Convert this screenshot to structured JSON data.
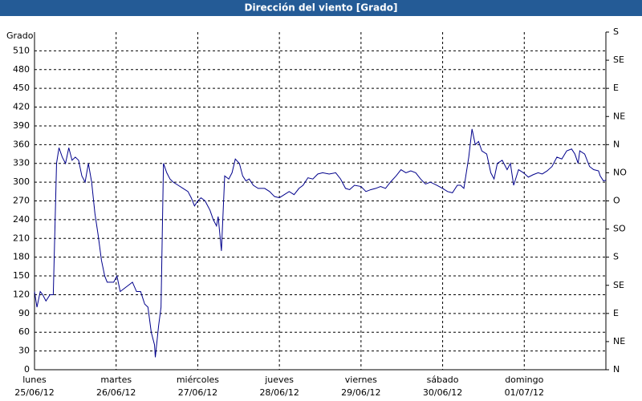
{
  "chart_data": {
    "type": "line",
    "title": "Dirección del viento [Grado]",
    "y_label": "Grado",
    "xlim": [
      0,
      7
    ],
    "xticks": [
      {
        "value": 0,
        "label": "lunes"
      },
      {
        "value": 1,
        "label": "martes"
      },
      {
        "value": 2,
        "label": "miércoles"
      },
      {
        "value": 3,
        "label": "jueves"
      },
      {
        "value": 4,
        "label": "viernes"
      },
      {
        "value": 5,
        "label": "sábado"
      },
      {
        "value": 6,
        "label": "domingo"
      }
    ],
    "xtick_dates": [
      "25/06/12",
      "26/06/12",
      "27/06/12",
      "28/06/12",
      "29/06/12",
      "30/06/12",
      "01/07/12"
    ],
    "ylim": [
      0,
      540
    ],
    "yticks": [
      0,
      30,
      60,
      90,
      120,
      150,
      180,
      210,
      240,
      270,
      300,
      330,
      360,
      390,
      420,
      450,
      480,
      510
    ],
    "y2lim": [
      0,
      540
    ],
    "y2ticks": [
      {
        "value": 0,
        "label": "N"
      },
      {
        "value": 45,
        "label": "NE"
      },
      {
        "value": 90,
        "label": "E"
      },
      {
        "value": 135,
        "label": "SE"
      },
      {
        "value": 180,
        "label": "S"
      },
      {
        "value": 225,
        "label": "SO"
      },
      {
        "value": 270,
        "label": "O"
      },
      {
        "value": 315,
        "label": "NO"
      },
      {
        "value": 360,
        "label": "N"
      },
      {
        "value": 405,
        "label": "NE"
      },
      {
        "value": 450,
        "label": "E"
      },
      {
        "value": 495,
        "label": "SE"
      },
      {
        "value": 540,
        "label": "S"
      }
    ],
    "grid": true,
    "series": [
      {
        "color": "#00008b",
        "x": [
          0,
          0.03,
          0.07,
          0.1,
          0.14,
          0.19,
          0.23,
          0.27,
          0.3,
          0.34,
          0.38,
          0.42,
          0.46,
          0.5,
          0.54,
          0.58,
          0.62,
          0.66,
          0.7,
          0.74,
          0.78,
          0.82,
          0.86,
          0.89,
          0.93,
          0.97,
          1.01,
          1.05,
          1.1,
          1.15,
          1.2,
          1.25,
          1.3,
          1.35,
          1.39,
          1.43,
          1.47,
          1.48,
          1.52,
          1.55,
          1.58,
          1.62,
          1.66,
          1.7,
          1.76,
          1.82,
          1.88,
          1.92,
          1.96,
          2.0,
          2.04,
          2.09,
          2.15,
          2.19,
          2.23,
          2.25,
          2.29,
          2.33,
          2.38,
          2.42,
          2.46,
          2.51,
          2.55,
          2.59,
          2.63,
          2.68,
          2.74,
          2.82,
          2.88,
          2.94,
          3.0,
          3.06,
          3.12,
          3.18,
          3.24,
          3.29,
          3.35,
          3.41,
          3.47,
          3.53,
          3.61,
          3.69,
          3.75,
          3.81,
          3.86,
          3.92,
          4.0,
          4.06,
          4.12,
          4.18,
          4.24,
          4.3,
          4.36,
          4.43,
          4.49,
          4.55,
          4.61,
          4.67,
          4.73,
          4.79,
          4.85,
          4.93,
          5.0,
          5.06,
          5.12,
          5.18,
          5.22,
          5.26,
          5.32,
          5.36,
          5.4,
          5.44,
          5.48,
          5.54,
          5.59,
          5.63,
          5.67,
          5.73,
          5.79,
          5.83,
          5.87,
          5.93,
          5.99,
          6.05,
          6.11,
          6.17,
          6.22,
          6.28,
          6.34,
          6.4,
          6.46,
          6.52,
          6.58,
          6.62,
          6.66,
          6.68,
          6.74,
          6.8,
          6.85,
          6.91,
          6.93,
          6.97,
          7.0
        ],
        "values": [
          125,
          100,
          125,
          120,
          110,
          120,
          120,
          330,
          355,
          340,
          330,
          355,
          335,
          340,
          335,
          310,
          300,
          330,
          300,
          250,
          215,
          175,
          150,
          140,
          140,
          140,
          150,
          125,
          130,
          135,
          140,
          125,
          125,
          105,
          100,
          60,
          40,
          20,
          70,
          100,
          330,
          315,
          305,
          300,
          295,
          290,
          285,
          275,
          262,
          270,
          275,
          270,
          255,
          240,
          230,
          245,
          190,
          310,
          305,
          315,
          337,
          330,
          310,
          302,
          305,
          295,
          290,
          290,
          285,
          277,
          275,
          280,
          285,
          280,
          290,
          295,
          307,
          305,
          313,
          315,
          313,
          315,
          305,
          290,
          288,
          295,
          293,
          285,
          288,
          290,
          293,
          290,
          300,
          310,
          320,
          315,
          318,
          315,
          305,
          297,
          300,
          295,
          290,
          285,
          283,
          295,
          295,
          290,
          340,
          385,
          360,
          365,
          350,
          345,
          315,
          305,
          330,
          335,
          320,
          330,
          295,
          320,
          315,
          308,
          312,
          315,
          313,
          318,
          325,
          340,
          337,
          350,
          353,
          345,
          330,
          350,
          345,
          325,
          320,
          318,
          310,
          302,
          303
        ]
      }
    ]
  }
}
